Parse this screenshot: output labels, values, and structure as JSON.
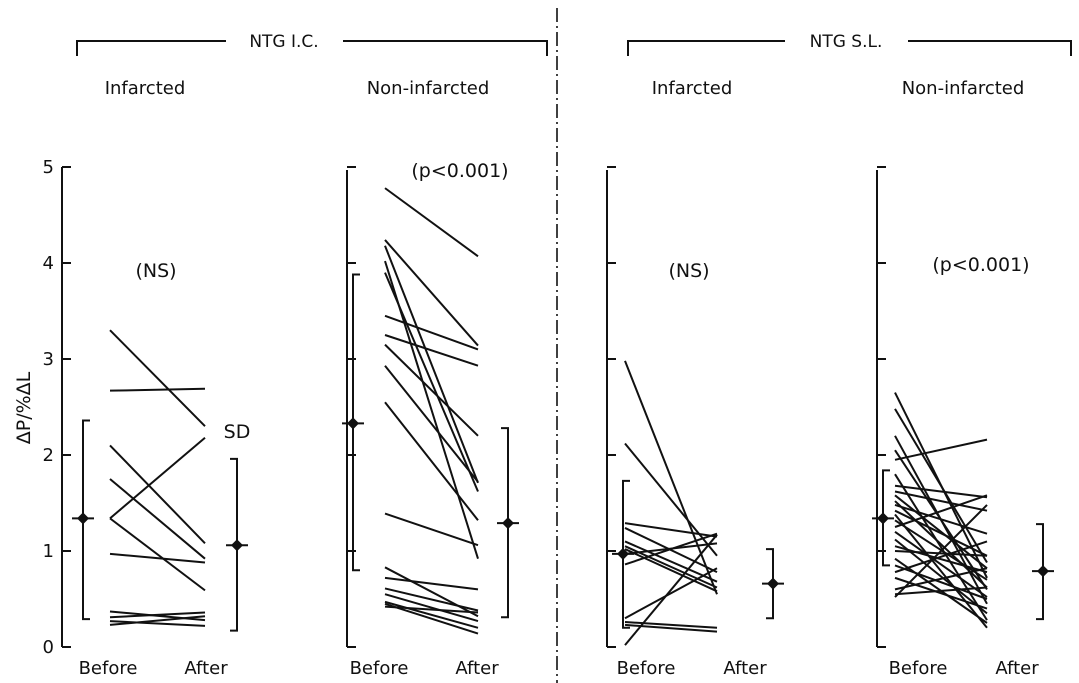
{
  "chart_data": {
    "type": "line",
    "ylabel": "ΔP/%ΔL",
    "ylim": [
      0,
      5
    ],
    "yticks": [
      "0",
      "1",
      "2",
      "3",
      "4",
      "5"
    ],
    "x_categories": [
      "Before",
      "After"
    ],
    "groups": [
      {
        "header": "NTG I.C.",
        "panels": [
          0,
          1
        ]
      },
      {
        "header": "NTG S.L.",
        "panels": [
          2,
          3
        ]
      }
    ],
    "panels": [
      {
        "title": "Infarcted",
        "annotation": "(NS)",
        "sd_label": "SD",
        "before_summary": {
          "mean": 1.34,
          "sd_low": 0.29,
          "sd_high": 2.36
        },
        "after_summary": {
          "mean": 1.06,
          "sd_low": 0.17,
          "sd_high": 1.96
        },
        "pairs": [
          [
            3.3,
            2.3
          ],
          [
            2.67,
            2.69
          ],
          [
            2.1,
            1.08
          ],
          [
            1.75,
            0.92
          ],
          [
            1.34,
            2.18
          ],
          [
            0.97,
            0.88
          ],
          [
            1.34,
            0.59
          ],
          [
            0.37,
            0.28
          ],
          [
            0.31,
            0.36
          ],
          [
            0.27,
            0.22
          ],
          [
            0.23,
            0.32
          ]
        ]
      },
      {
        "title": "Non-infarcted",
        "annotation": "(p<0.001)",
        "before_summary": {
          "mean": 2.33,
          "sd_low": 0.8,
          "sd_high": 3.88
        },
        "after_summary": {
          "mean": 1.29,
          "sd_low": 0.31,
          "sd_high": 2.28
        },
        "pairs": [
          [
            4.78,
            4.07
          ],
          [
            4.24,
            3.14
          ],
          [
            4.18,
            1.71
          ],
          [
            4.02,
            0.92
          ],
          [
            3.9,
            1.62
          ],
          [
            3.45,
            3.1
          ],
          [
            3.25,
            2.93
          ],
          [
            3.15,
            2.2
          ],
          [
            2.93,
            1.72
          ],
          [
            2.55,
            1.32
          ],
          [
            1.39,
            1.06
          ],
          [
            0.83,
            0.32
          ],
          [
            0.72,
            0.6
          ],
          [
            0.61,
            0.38
          ],
          [
            0.55,
            0.27
          ],
          [
            0.47,
            0.2
          ],
          [
            0.45,
            0.14
          ],
          [
            0.42,
            0.36
          ]
        ]
      },
      {
        "title": "Infarcted",
        "annotation": "(NS)",
        "before_summary": {
          "mean": 0.97,
          "sd_low": 0.2,
          "sd_high": 1.73
        },
        "after_summary": {
          "mean": 0.66,
          "sd_low": 0.3,
          "sd_high": 1.02
        },
        "pairs": [
          [
            2.98,
            0.55
          ],
          [
            2.12,
            0.95
          ],
          [
            1.29,
            1.15
          ],
          [
            1.24,
            0.78
          ],
          [
            1.1,
            0.68
          ],
          [
            1.05,
            0.62
          ],
          [
            1.02,
            0.58
          ],
          [
            0.97,
            1.08
          ],
          [
            0.86,
            1.18
          ],
          [
            0.3,
            0.82
          ],
          [
            0.26,
            0.2
          ],
          [
            0.23,
            0.16
          ],
          [
            0.02,
            1.17
          ]
        ]
      },
      {
        "title": "Non-infarcted",
        "annotation": "(p<0.001)",
        "before_summary": {
          "mean": 1.34,
          "sd_low": 0.85,
          "sd_high": 1.84
        },
        "after_summary": {
          "mean": 0.79,
          "sd_low": 0.29,
          "sd_high": 1.28
        },
        "pairs": [
          [
            2.65,
            0.72
          ],
          [
            2.48,
            0.88
          ],
          [
            2.2,
            0.45
          ],
          [
            2.05,
            0.6
          ],
          [
            1.95,
            2.16
          ],
          [
            1.8,
            0.28
          ],
          [
            1.68,
            1.56
          ],
          [
            1.62,
            1.42
          ],
          [
            1.58,
            0.82
          ],
          [
            1.52,
            0.62
          ],
          [
            1.48,
            1.18
          ],
          [
            1.42,
            0.95
          ],
          [
            1.38,
            0.2
          ],
          [
            1.32,
            0.7
          ],
          [
            1.25,
            1.58
          ],
          [
            1.2,
            0.52
          ],
          [
            1.12,
            0.35
          ],
          [
            1.05,
            0.78
          ],
          [
            1.0,
            0.95
          ],
          [
            0.92,
            0.25
          ],
          [
            0.85,
            0.5
          ],
          [
            0.78,
            1.1
          ],
          [
            0.72,
            0.4
          ],
          [
            0.6,
            0.82
          ],
          [
            0.55,
            0.62
          ],
          [
            0.52,
            1.48
          ]
        ]
      }
    ]
  }
}
